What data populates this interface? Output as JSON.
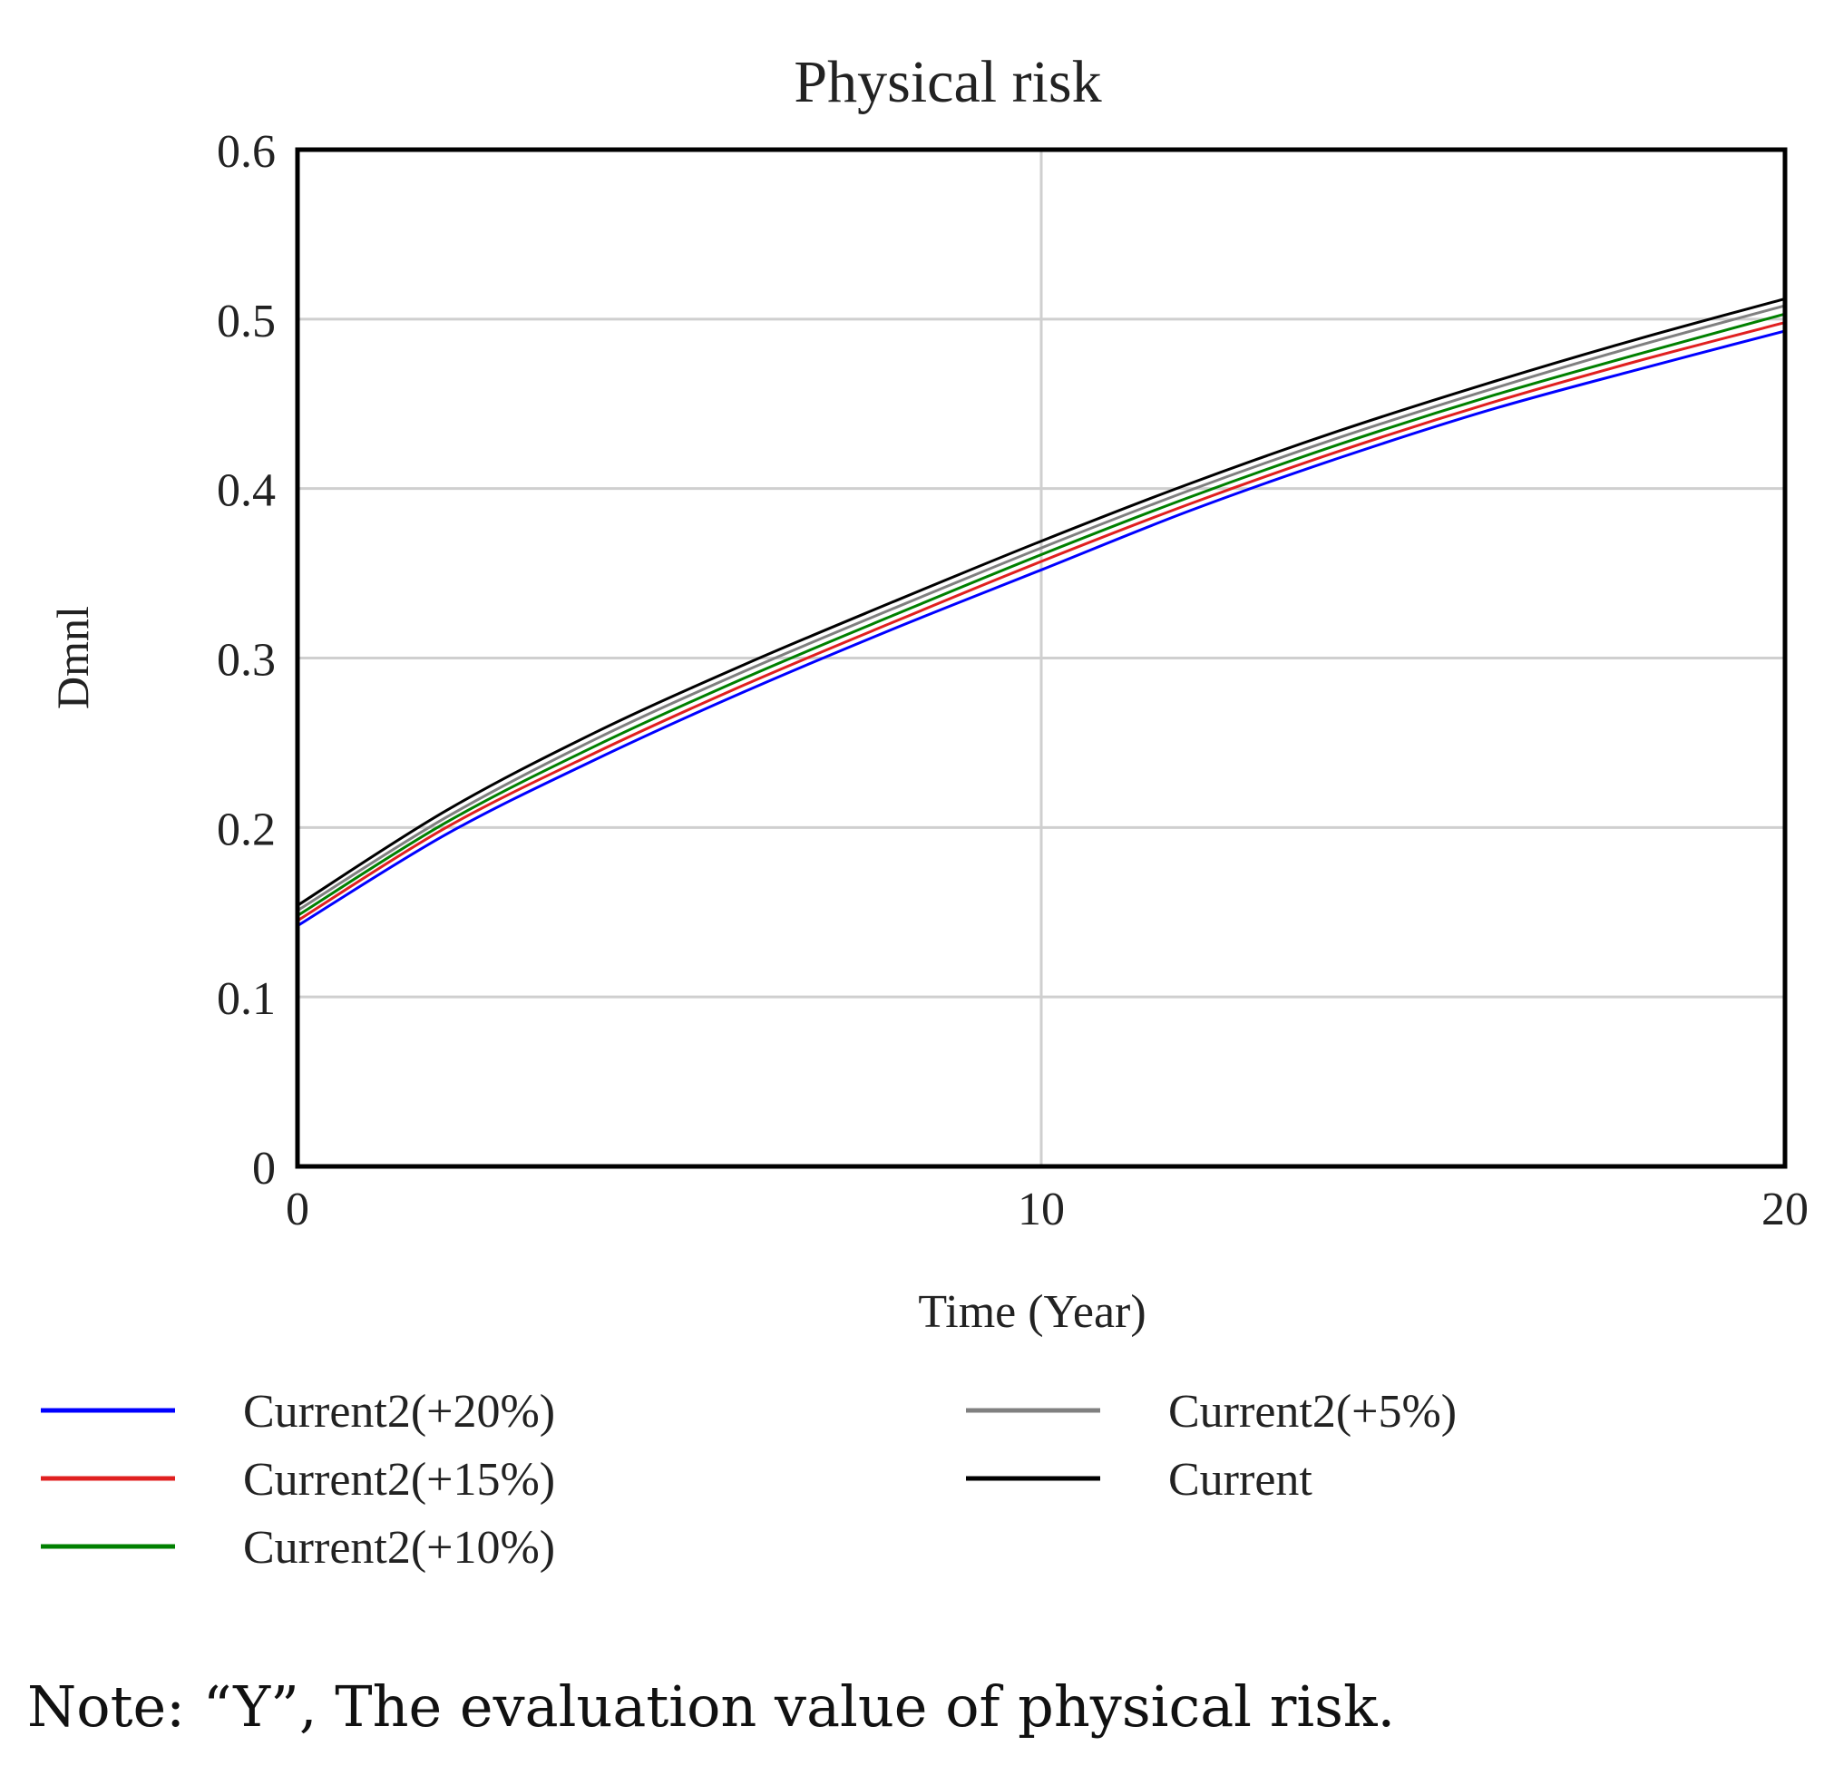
{
  "chart_data": {
    "type": "line",
    "title": "Physical risk",
    "xlabel": "Time (Year)",
    "ylabel": "Dmnl",
    "xlim": [
      0,
      20
    ],
    "ylim": [
      0,
      0.6
    ],
    "x_ticks": [
      "0",
      "10",
      "20"
    ],
    "y_ticks": [
      "0",
      "0.1",
      "0.2",
      "0.3",
      "0.4",
      "0.5",
      "0.6"
    ],
    "grid": true,
    "x": [
      0,
      2,
      4,
      6,
      8,
      10,
      12,
      14,
      16,
      18,
      20
    ],
    "series": [
      {
        "name": "Current2(+20%)",
        "color": "#0000ff",
        "values": [
          0.142,
          0.196,
          0.24,
          0.28,
          0.317,
          0.352,
          0.387,
          0.418,
          0.446,
          0.47,
          0.493
        ]
      },
      {
        "name": "Current2(+15%)",
        "color": "#e02020",
        "values": [
          0.145,
          0.2,
          0.244,
          0.284,
          0.321,
          0.357,
          0.391,
          0.422,
          0.45,
          0.475,
          0.498
        ]
      },
      {
        "name": "Current2(+10%)",
        "color": "#008000",
        "values": [
          0.148,
          0.203,
          0.248,
          0.288,
          0.325,
          0.361,
          0.395,
          0.426,
          0.454,
          0.479,
          0.503
        ]
      },
      {
        "name": "Current2(+5%)",
        "color": "#808080",
        "values": [
          0.151,
          0.206,
          0.252,
          0.292,
          0.329,
          0.365,
          0.399,
          0.43,
          0.458,
          0.484,
          0.508
        ]
      },
      {
        "name": "Current",
        "color": "#000000",
        "values": [
          0.154,
          0.21,
          0.256,
          0.296,
          0.333,
          0.369,
          0.403,
          0.434,
          0.462,
          0.488,
          0.512
        ]
      }
    ]
  },
  "note": "Note: “Y”, The evaluation value of physical risk."
}
